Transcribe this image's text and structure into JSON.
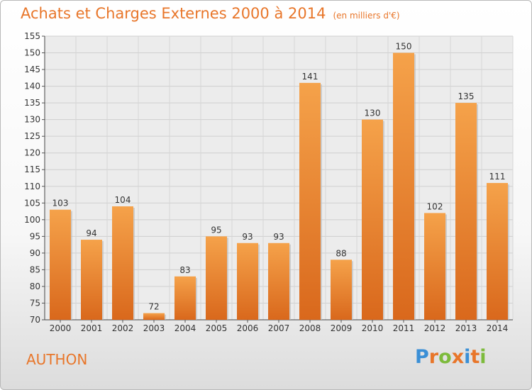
{
  "title": "Achats et Charges Externes 2000 à 2014",
  "subtitle": "(en milliers d'€)",
  "place": "AUTHON",
  "logo": {
    "letters": [
      "P",
      "r",
      "o",
      "x",
      "i",
      "t",
      "i"
    ],
    "colors": [
      "#3a8fd6",
      "#e8762a",
      "#7dbb3c",
      "#e8762a",
      "#3a8fd6",
      "#e8762a",
      "#7dbb3c"
    ]
  },
  "chart_data": {
    "type": "bar",
    "categories": [
      "2000",
      "2001",
      "2002",
      "2003",
      "2004",
      "2005",
      "2006",
      "2007",
      "2008",
      "2009",
      "2010",
      "2011",
      "2012",
      "2013",
      "2014"
    ],
    "values": [
      103,
      94,
      104,
      72,
      83,
      95,
      93,
      93,
      141,
      88,
      130,
      150,
      102,
      135,
      111
    ],
    "ylim": [
      70,
      155
    ],
    "yticks": [
      70,
      75,
      80,
      85,
      90,
      95,
      100,
      105,
      110,
      115,
      120,
      125,
      130,
      135,
      140,
      145,
      150,
      155
    ],
    "grid": true,
    "bar_color": "#e8812e"
  }
}
